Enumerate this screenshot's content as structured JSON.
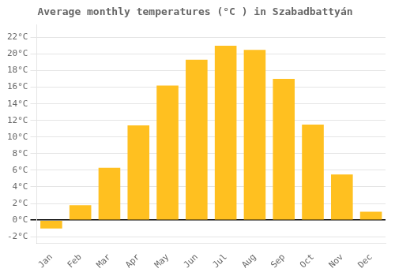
{
  "chart_data": {
    "type": "bar",
    "title": "Average monthly temperatures (°C ) in Szabadbattyán",
    "categories": [
      "Jan",
      "Feb",
      "Mar",
      "Apr",
      "May",
      "Jun",
      "Jul",
      "Aug",
      "Sep",
      "Oct",
      "Nov",
      "Dec"
    ],
    "values": [
      -1.0,
      1.8,
      6.3,
      11.4,
      16.2,
      19.3,
      21.0,
      20.5,
      17.0,
      11.5,
      5.5,
      1.0
    ],
    "color": "#FFC020",
    "ylim": [
      -2.8,
      23.5
    ],
    "yticks": [
      {
        "value": -2,
        "label": "-2°C"
      },
      {
        "value": 0,
        "label": "0°C"
      },
      {
        "value": 2,
        "label": "2°C"
      },
      {
        "value": 4,
        "label": "4°C"
      },
      {
        "value": 6,
        "label": "6°C"
      },
      {
        "value": 8,
        "label": "8°C"
      },
      {
        "value": 10,
        "label": "10°C"
      },
      {
        "value": 12,
        "label": "12°C"
      },
      {
        "value": 14,
        "label": "14°C"
      },
      {
        "value": 16,
        "label": "16°C"
      },
      {
        "value": 18,
        "label": "18°C"
      },
      {
        "value": 20,
        "label": "20°C"
      },
      {
        "value": 22,
        "label": "22°C"
      }
    ],
    "grid": true
  }
}
